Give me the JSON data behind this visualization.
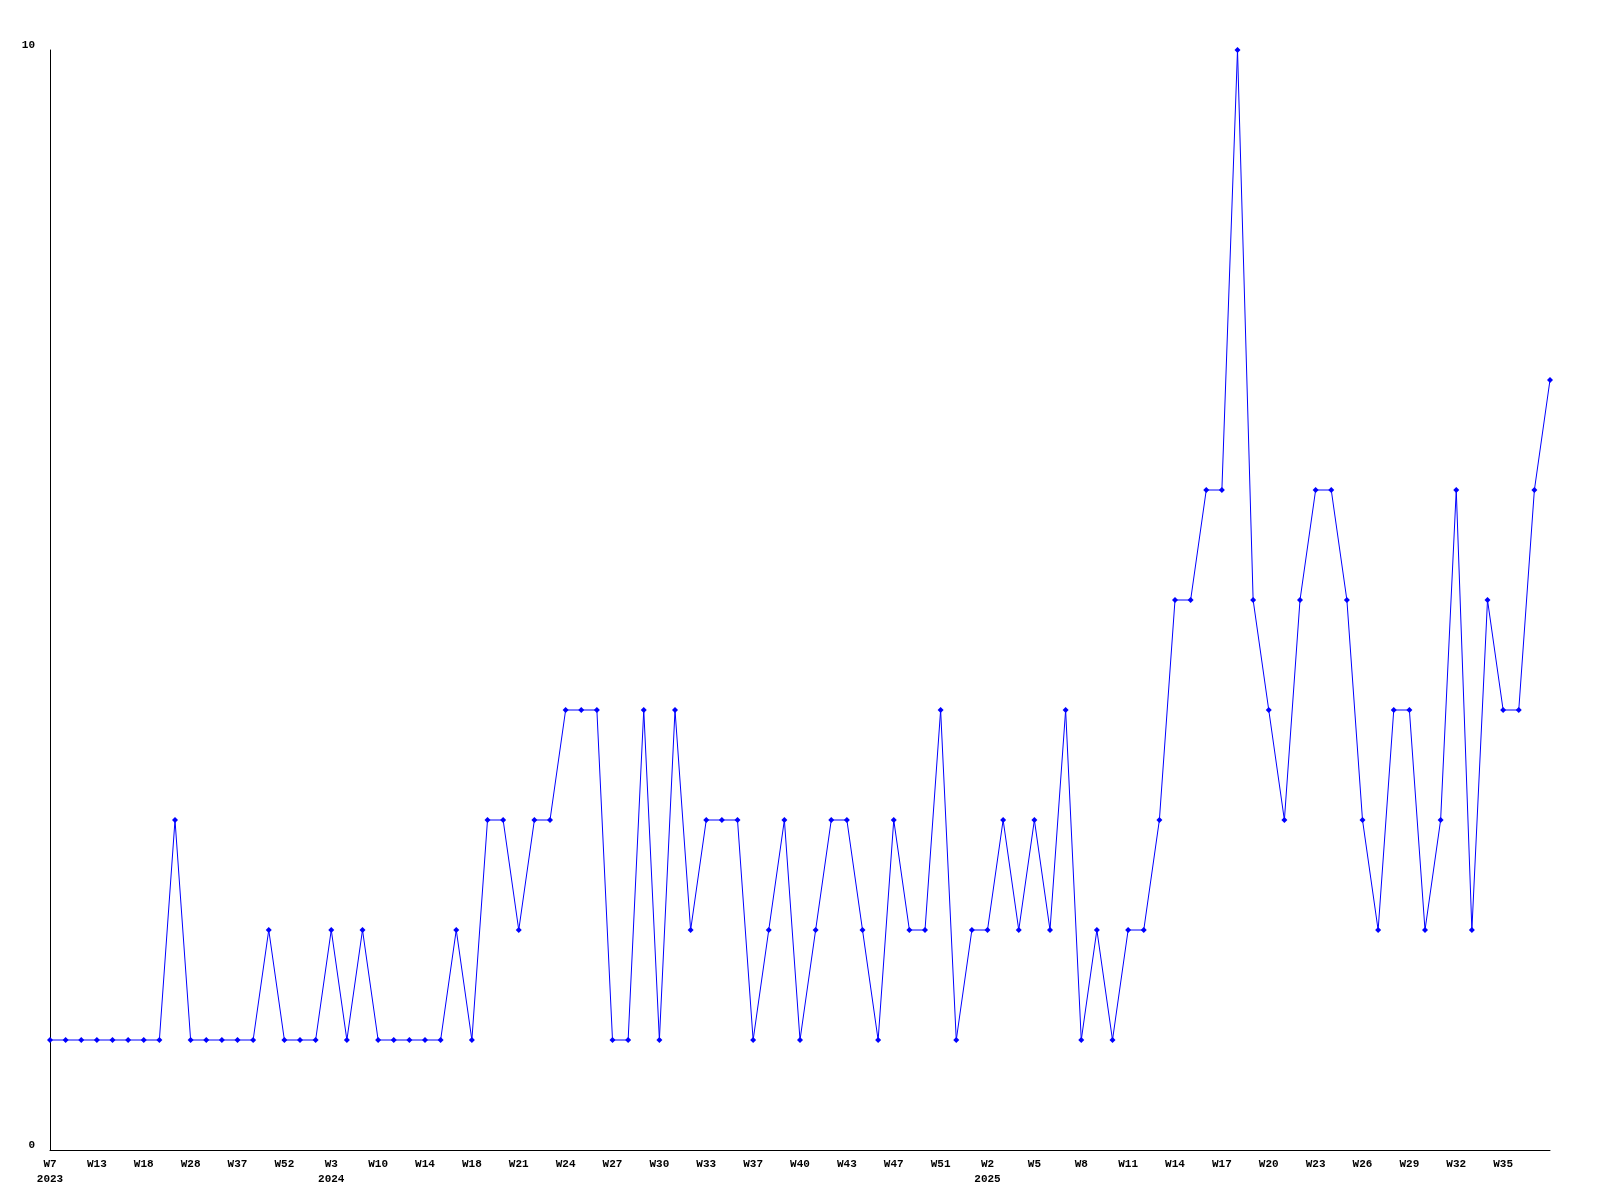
{
  "chart_data": {
    "type": "line",
    "categories": [
      "W7\n2023",
      null,
      null,
      "W13",
      null,
      null,
      "W18",
      null,
      null,
      "W28",
      null,
      null,
      "W37",
      null,
      null,
      "W52",
      null,
      null,
      "W3\n2024",
      null,
      null,
      "W10",
      null,
      null,
      "W14",
      null,
      null,
      "W18",
      null,
      null,
      "W21",
      null,
      null,
      "W24",
      null,
      null,
      "W27",
      null,
      null,
      "W30",
      null,
      null,
      "W33",
      null,
      null,
      "W37",
      null,
      null,
      "W40",
      null,
      null,
      "W43",
      null,
      null,
      "W47",
      null,
      null,
      "W51",
      null,
      null,
      "W2\n2025",
      null,
      null,
      "W5",
      null,
      null,
      "W8",
      null,
      null,
      "W11",
      null,
      null,
      "W14",
      null,
      null,
      "W17",
      null,
      null,
      "W20",
      null,
      null,
      "W23",
      null,
      null,
      "W26",
      null,
      null,
      "W29",
      null,
      null,
      "W32",
      null,
      null,
      "W35",
      null,
      null,
      null
    ],
    "series": [
      {
        "color": "#0000ff",
        "values": [
          1,
          1,
          1,
          1,
          1,
          1,
          1,
          1,
          3,
          1,
          1,
          1,
          1,
          1,
          2,
          1,
          1,
          1,
          2,
          1,
          2,
          1,
          1,
          1,
          1,
          1,
          2,
          1,
          3,
          3,
          2,
          3,
          3,
          4,
          4,
          4,
          1,
          1,
          4,
          1,
          4,
          2,
          3,
          3,
          3,
          1,
          2,
          3,
          1,
          2,
          3,
          3,
          2,
          1,
          3,
          2,
          2,
          4,
          1,
          2,
          2,
          3,
          2,
          3,
          2,
          4,
          1,
          2,
          1,
          2,
          2,
          3,
          5,
          5,
          6,
          6,
          10,
          5,
          4,
          3,
          5,
          6,
          6,
          5,
          3,
          2,
          4,
          4,
          2,
          3,
          6,
          2,
          5,
          4,
          4,
          6,
          7
        ]
      }
    ],
    "ylim": [
      0,
      10
    ],
    "yticks": [
      0,
      10
    ],
    "grid": false,
    "marker": "diamond",
    "line_style": "solid"
  }
}
